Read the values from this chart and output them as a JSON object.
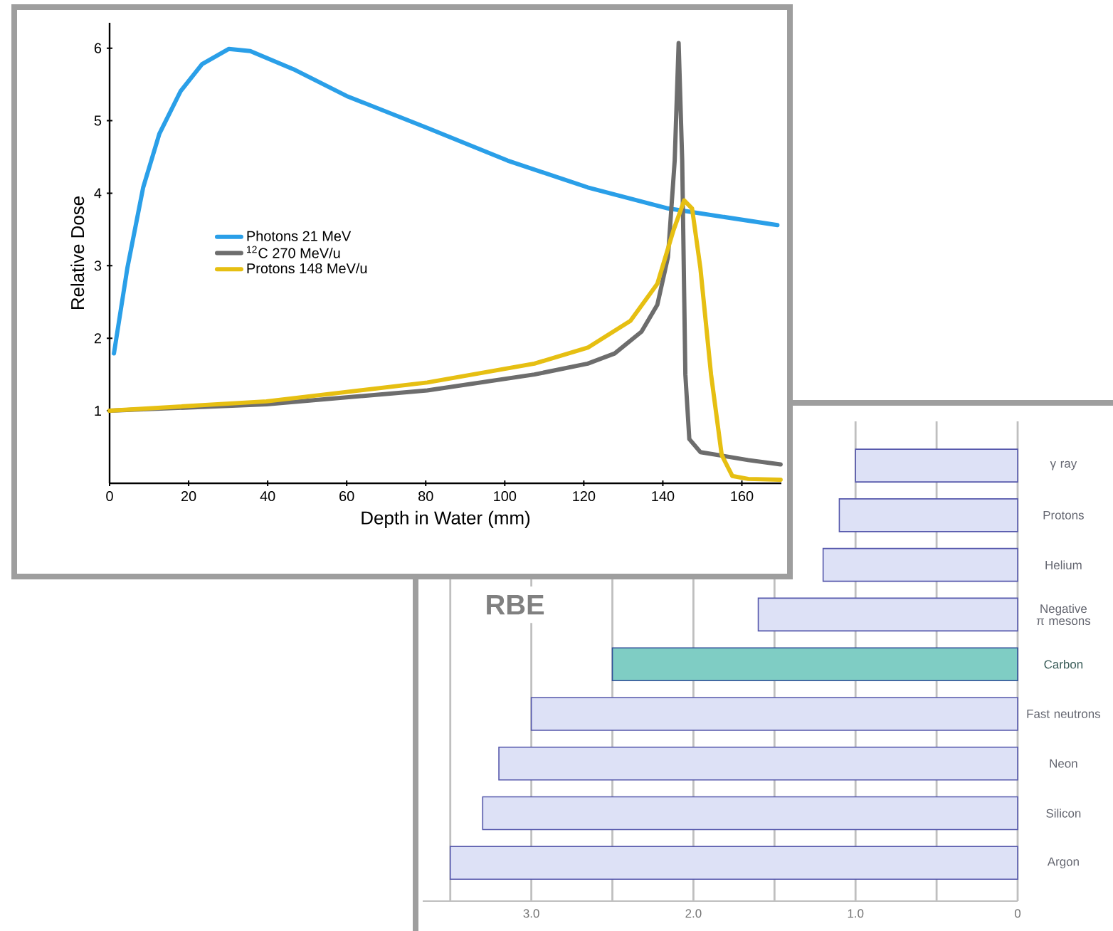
{
  "chart_data": [
    {
      "type": "line",
      "xlabel": "Depth in Water (mm)",
      "ylabel": "Relative Dose",
      "xlim": [
        0,
        170
      ],
      "ylim": [
        0,
        6.35
      ],
      "xticks": [
        0,
        20,
        40,
        60,
        80,
        100,
        120,
        140,
        160
      ],
      "yticks": [
        1,
        2,
        3,
        4,
        5,
        6
      ],
      "legend": "left",
      "line_style": "solid",
      "series": [
        {
          "name": "Photons 21 MeV",
          "color": "#2a9fe8",
          "x": [
            1.1,
            4.5,
            8.5,
            12.6,
            18,
            23.4,
            30.2,
            35.6,
            46.5,
            60,
            80.4,
            100.7,
            121,
            141.3,
            169
          ],
          "values": [
            1.79,
            2.97,
            4.08,
            4.82,
            5.41,
            5.78,
            5.99,
            5.96,
            5.71,
            5.34,
            4.9,
            4.45,
            4.08,
            3.79,
            3.56
          ]
        },
        {
          "name": "$^{12}$C 270 MeV/u",
          "color": "#6d6d6d",
          "x": [
            0,
            39.7,
            80.4,
            107.5,
            121,
            127.8,
            134.6,
            138.6,
            141.3,
            143,
            144,
            144.9,
            145.7,
            146.7,
            149.5,
            161.6,
            169.8
          ],
          "values": [
            1.0,
            1.09,
            1.28,
            1.5,
            1.65,
            1.79,
            2.09,
            2.46,
            3.12,
            4.45,
            6.07,
            4.45,
            1.5,
            0.61,
            0.43,
            0.32,
            0.26
          ]
        },
        {
          "name": "Protons 148 MeV/u",
          "color": "#e6bf12",
          "x": [
            0,
            39.7,
            80.4,
            107.5,
            121,
            131.8,
            138.6,
            142.7,
            145.4,
            147.4,
            149.5,
            152.2,
            154.9,
            157.6,
            161.6,
            169.8
          ],
          "values": [
            1.0,
            1.13,
            1.39,
            1.65,
            1.87,
            2.24,
            2.75,
            3.49,
            3.9,
            3.79,
            2.97,
            1.5,
            0.39,
            0.1,
            0.06,
            0.05
          ]
        }
      ]
    },
    {
      "type": "bar",
      "orientation": "horizontal",
      "title": "RBE",
      "categories": [
        "γ ray",
        "Protons",
        "Helium",
        "Negative π mesons",
        "Carbon",
        "Fast neutrons",
        "Neon",
        "Silicon",
        "Argon"
      ],
      "values": [
        1.0,
        1.1,
        1.2,
        1.6,
        2.5,
        3.0,
        3.2,
        3.3,
        3.5
      ],
      "colors": [
        "#dde1f6",
        "#dde1f6",
        "#dde1f6",
        "#dde1f6",
        "#7fcdc4",
        "#dde1f6",
        "#dde1f6",
        "#dde1f6",
        "#dde1f6"
      ],
      "xlim": [
        3.67,
        0
      ],
      "xticks": [
        {
          "value": 3.5,
          "label": null
        },
        {
          "value": 3,
          "label": "3.0"
        },
        {
          "value": 2.5,
          "label": null
        },
        {
          "value": 2,
          "label": "2.0"
        },
        {
          "value": 1.5,
          "label": null
        },
        {
          "value": 1,
          "label": "1.0"
        },
        {
          "value": 0.5,
          "label": null
        },
        0
      ],
      "grid": "x"
    }
  ]
}
